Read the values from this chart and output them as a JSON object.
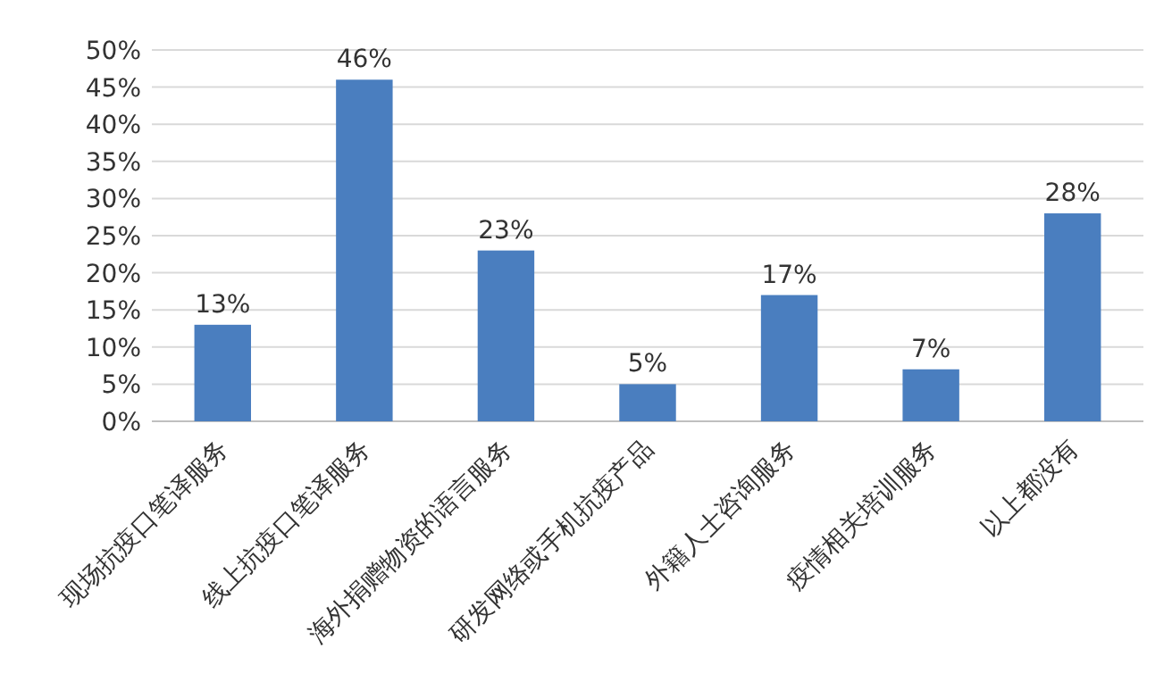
{
  "chart_data": {
    "type": "bar",
    "categories": [
      "现场抗疫口笔译服务",
      "线上抗疫口笔译服务",
      "海外捐赠物资的语言服务",
      "研发网络或手机抗疫产品",
      "外籍人士咨询服务",
      "疫情相关培训服务",
      "以上都没有"
    ],
    "values": [
      13,
      46,
      23,
      5,
      17,
      7,
      28
    ],
    "value_labels": [
      "13%",
      "46%",
      "23%",
      "5%",
      "17%",
      "7%",
      "28%"
    ],
    "color": "#4a7ebf",
    "ylim": [
      0,
      50
    ],
    "yticks": [
      {
        "value": 0,
        "label": "0%"
      },
      {
        "value": 5,
        "label": "5%"
      },
      {
        "value": 10,
        "label": "10%"
      },
      {
        "value": 15,
        "label": "15%"
      },
      {
        "value": 20,
        "label": "20%"
      },
      {
        "value": 25,
        "label": "25%"
      },
      {
        "value": 30,
        "label": "30%"
      },
      {
        "value": 35,
        "label": "35%"
      },
      {
        "value": 40,
        "label": "40%"
      },
      {
        "value": 45,
        "label": "45%"
      },
      {
        "value": 50,
        "label": "50%"
      }
    ],
    "grid": "y"
  }
}
